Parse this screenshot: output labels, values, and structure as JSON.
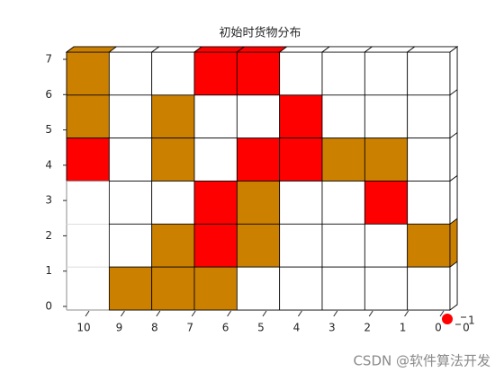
{
  "chart_data": {
    "type": "grid-heatmap",
    "title": "初始时货物分布",
    "state_colors": [
      "#ffffff",
      "#cc8000",
      "#ff0000"
    ],
    "cells": [
      [
        1,
        0,
        0,
        2,
        2,
        0,
        0,
        0,
        0
      ],
      [
        1,
        0,
        1,
        0,
        0,
        2,
        0,
        0,
        0
      ],
      [
        2,
        0,
        1,
        0,
        2,
        2,
        1,
        1,
        0
      ],
      [
        null,
        0,
        0,
        2,
        1,
        0,
        0,
        2,
        0
      ],
      [
        null,
        0,
        1,
        2,
        1,
        0,
        0,
        0,
        1
      ],
      [
        null,
        1,
        1,
        1,
        0,
        0,
        0,
        0,
        0
      ]
    ],
    "ylim": [
      0,
      7
    ],
    "yticks": [
      0,
      1,
      2,
      3,
      4,
      5,
      6,
      7
    ],
    "xlim": [
      10,
      0
    ],
    "xticks": [
      10,
      9,
      8,
      7,
      6,
      5,
      4,
      3,
      2,
      1,
      0
    ],
    "zticks": [
      0,
      1
    ]
  },
  "watermark": "CSDN @软件算法开发"
}
